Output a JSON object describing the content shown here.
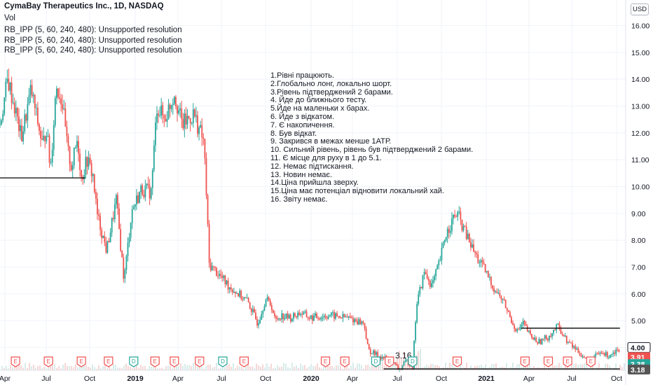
{
  "header": {
    "title": "CymaBay Therapeutics Inc., 1D, NASDAQ",
    "vol_label": "Vol",
    "indicators": [
      "RB_IPP (5, 60, 240, 480): Unsupported resolution",
      "RB_IPP (5, 60, 240, 480): Unsupported resolution",
      "RB_IPP (5, 60, 240, 480): Unsupported resolution"
    ]
  },
  "currency": "USD",
  "notes": [
    "1.Рівні працюють.",
    "2.Глобально лонг, локально шорт.",
    "3.Рівень підтверджений 2 барами.",
    "4. Йде до ближнього тесту.",
    "5.Йде на маленьки х барах.",
    "6. Йде з відкатом.",
    "7. Є накопичення.",
    "8. Був відкат.",
    "9. Закрився в межах менше 1АТР.",
    "10. Сильний рівень, рівень був підтверджений 2 барами.",
    "11. Є місце для руху в 1 до 5.1.",
    "12. Немає підтискання.",
    "13. Новин немає.",
    "14.Ціна прийшла зверху.",
    "15.Ціна має потенціал відновити локальний хай.",
    "16. Звіту немає."
  ],
  "chart_data": {
    "type": "candlestick",
    "title": "CymaBay Therapeutics Inc., 1D, NASDAQ",
    "y_axis": {
      "ticks": [
        4.0,
        5.0,
        6.0,
        7.0,
        8.0,
        9.0,
        10.0,
        11.0,
        12.0,
        13.0,
        14.0,
        15.0,
        16.0
      ],
      "tick_labels": [
        "4.00",
        "5.00",
        "6.00",
        "7.00",
        "8.00",
        "9.00",
        "10.00",
        "11.00",
        "12.00",
        "13.00",
        "14.00",
        "15.00",
        "16.00"
      ],
      "ylim": [
        3.15,
        16.95
      ]
    },
    "x_axis": {
      "ticks": [
        {
          "label": "Apr",
          "bold": false
        },
        {
          "label": "Jul",
          "bold": false
        },
        {
          "label": "Oct",
          "bold": false
        },
        {
          "label": "2019",
          "bold": true
        },
        {
          "label": "Apr",
          "bold": false
        },
        {
          "label": "Jul",
          "bold": false
        },
        {
          "label": "Oct",
          "bold": false
        },
        {
          "label": "2020",
          "bold": true
        },
        {
          "label": "Apr",
          "bold": false
        },
        {
          "label": "Jul",
          "bold": false
        },
        {
          "label": "Oct",
          "bold": false
        },
        {
          "label": "2021",
          "bold": true
        },
        {
          "label": "Apr",
          "bold": false
        },
        {
          "label": "Jul",
          "bold": false
        },
        {
          "label": "Oct",
          "bold": false
        }
      ]
    },
    "price_path": [
      {
        "t": 0,
        "p": 12.3
      },
      {
        "t": 0.4,
        "p": 14.0
      },
      {
        "t": 0.8,
        "p": 12.8
      },
      {
        "t": 1.1,
        "p": 11.8
      },
      {
        "t": 1.6,
        "p": 13.6
      },
      {
        "t": 2.2,
        "p": 11.5
      },
      {
        "t": 2.4,
        "p": 12.2
      },
      {
        "t": 2.6,
        "p": 10.6
      },
      {
        "t": 2.9,
        "p": 13.8
      },
      {
        "t": 3.2,
        "p": 13.2
      },
      {
        "t": 3.5,
        "p": 11.3
      },
      {
        "t": 3.7,
        "p": 10.7
      },
      {
        "t": 4.0,
        "p": 11.8
      },
      {
        "t": 4.2,
        "p": 10.3
      },
      {
        "t": 4.5,
        "p": 11.0
      },
      {
        "t": 4.8,
        "p": 10.4
      },
      {
        "t": 5.0,
        "p": 9.0
      },
      {
        "t": 5.5,
        "p": 7.6
      },
      {
        "t": 6.0,
        "p": 9.5
      },
      {
        "t": 6.4,
        "p": 6.5
      },
      {
        "t": 6.8,
        "p": 9.1
      },
      {
        "t": 7.3,
        "p": 9.9
      },
      {
        "t": 7.8,
        "p": 9.8
      },
      {
        "t": 8.1,
        "p": 13.0
      },
      {
        "t": 8.5,
        "p": 12.5
      },
      {
        "t": 9.0,
        "p": 13.5
      },
      {
        "t": 9.4,
        "p": 12.3
      },
      {
        "t": 10.0,
        "p": 12.7
      },
      {
        "t": 10.5,
        "p": 11.7
      },
      {
        "t": 10.6,
        "p": 10.6
      },
      {
        "t": 10.8,
        "p": 7.1
      },
      {
        "t": 11.2,
        "p": 6.8
      },
      {
        "t": 11.8,
        "p": 6.3
      },
      {
        "t": 12.3,
        "p": 6.0
      },
      {
        "t": 12.8,
        "p": 5.7
      },
      {
        "t": 13.3,
        "p": 4.9
      },
      {
        "t": 13.7,
        "p": 5.8
      },
      {
        "t": 14.0,
        "p": 5.6
      },
      {
        "t": 14.2,
        "p": 5.0
      },
      {
        "t": 14.5,
        "p": 5.2
      },
      {
        "t": 15.0,
        "p": 5.1
      },
      {
        "t": 15.5,
        "p": 5.3
      },
      {
        "t": 16.0,
        "p": 5.1
      },
      {
        "t": 17.0,
        "p": 5.2
      },
      {
        "t": 18.0,
        "p": 5.1
      },
      {
        "t": 18.8,
        "p": 4.9
      },
      {
        "t": 19.0,
        "p": 3.9
      },
      {
        "t": 19.5,
        "p": 3.7
      },
      {
        "t": 20.2,
        "p": 3.5
      },
      {
        "t": 20.6,
        "p": 3.16
      },
      {
        "t": 21.0,
        "p": 3.5
      },
      {
        "t": 21.3,
        "p": 3.3
      },
      {
        "t": 21.5,
        "p": 5.6
      },
      {
        "t": 21.9,
        "p": 6.8
      },
      {
        "t": 22.3,
        "p": 6.3
      },
      {
        "t": 22.7,
        "p": 7.2
      },
      {
        "t": 23.0,
        "p": 8.2
      },
      {
        "t": 23.4,
        "p": 8.8
      },
      {
        "t": 23.6,
        "p": 9.0
      },
      {
        "t": 24.0,
        "p": 8.3
      },
      {
        "t": 24.5,
        "p": 7.5
      },
      {
        "t": 25.0,
        "p": 6.9
      },
      {
        "t": 25.5,
        "p": 6.2
      },
      {
        "t": 26.0,
        "p": 5.7
      },
      {
        "t": 26.4,
        "p": 5.0
      },
      {
        "t": 26.7,
        "p": 4.6
      },
      {
        "t": 27.0,
        "p": 4.9
      },
      {
        "t": 27.4,
        "p": 4.4
      },
      {
        "t": 27.8,
        "p": 4.2
      },
      {
        "t": 28.3,
        "p": 4.4
      },
      {
        "t": 28.8,
        "p": 4.8
      },
      {
        "t": 29.3,
        "p": 4.2
      },
      {
        "t": 29.8,
        "p": 3.9
      },
      {
        "t": 30.3,
        "p": 3.5
      },
      {
        "t": 30.6,
        "p": 3.6
      },
      {
        "t": 31.0,
        "p": 3.8
      },
      {
        "t": 31.4,
        "p": 3.7
      },
      {
        "t": 31.8,
        "p": 3.9
      },
      {
        "t": 32.0,
        "p": 3.91
      }
    ],
    "levels": [
      {
        "price": 10.32,
        "from_t": 0,
        "to_t": 4.4
      },
      {
        "price": 4.72,
        "from_t": 26.9,
        "to_t": 32.0
      },
      {
        "price": 3.2,
        "from_t": 19.8,
        "to_t": 32.0
      }
    ],
    "annotations": [
      {
        "text": "3.16",
        "t": 20.4,
        "price": 3.6
      }
    ],
    "price_labels": [
      {
        "text": "4.00",
        "price": 4.0,
        "color": "#131722",
        "bg": "#ffffff",
        "border": "#131722"
      },
      {
        "text": "3.91",
        "price": 3.64,
        "color": "#ffffff",
        "bg": "#ef5350"
      },
      {
        "text": "3.38",
        "price": 3.38,
        "color": "#ffffff",
        "bg": "#26a69a"
      },
      {
        "text": "3.18",
        "price": 3.18,
        "color": "#ffffff",
        "bg": "#555555"
      }
    ],
    "events": [
      {
        "type": "E",
        "t": 0.8
      },
      {
        "type": "E",
        "t": 2.5
      },
      {
        "type": "E",
        "t": 4.2
      },
      {
        "type": "E",
        "t": 5.6
      },
      {
        "type": "D",
        "t": 6.9
      },
      {
        "type": "E",
        "t": 8.0
      },
      {
        "type": "E",
        "t": 9.0
      },
      {
        "type": "E",
        "t": 10.3
      },
      {
        "type": "D",
        "t": 11.5
      },
      {
        "type": "E",
        "t": 12.6
      },
      {
        "type": "E",
        "t": 16.8
      },
      {
        "type": "E",
        "t": 17.8
      },
      {
        "type": "D",
        "t": 19.4
      },
      {
        "type": "E",
        "t": 20.1
      },
      {
        "type": "D",
        "t": 21.3
      },
      {
        "type": "E",
        "t": 23.6
      },
      {
        "type": "E",
        "t": 27.1
      },
      {
        "type": "E",
        "t": 28.3
      },
      {
        "type": "E",
        "t": 29.3
      },
      {
        "type": "E",
        "t": 30.5
      }
    ],
    "colors": {
      "up": "#26a69a",
      "down": "#ef5350",
      "level": "#000000",
      "grid": "#f0f3fa",
      "axis_text": "#131722"
    }
  }
}
